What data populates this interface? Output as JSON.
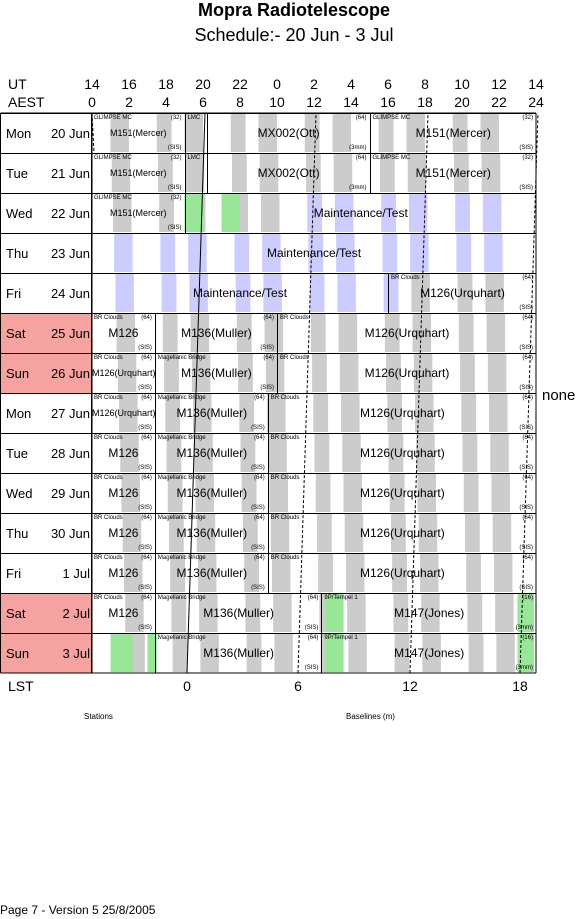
{
  "title": "Mopra Radiotelescope",
  "subtitle": "Schedule:- 20 Jun - 3  Jul",
  "ut_label": "UT",
  "aest_label": "AEST",
  "ut_ticks": [
    "14",
    "16",
    "18",
    "20",
    "22",
    "0",
    "2",
    "4",
    "6",
    "8",
    "10",
    "12",
    "14"
  ],
  "aest_ticks": [
    "0",
    "2",
    "4",
    "6",
    "8",
    "10",
    "12",
    "14",
    "16",
    "18",
    "20",
    "22",
    "24"
  ],
  "lst_label": "LST",
  "lst_ticks": [
    "0",
    "6",
    "12",
    "18"
  ],
  "none_label": "none",
  "stations_label": "Stations",
  "baselines_label": "Baselines (m)",
  "footer": "Page 7 - Version 5  25/8/2005",
  "colors": {
    "gray": "#cccccc",
    "blue": "#ccccff",
    "green": "#99e699",
    "weekend": "#f4a3a0"
  },
  "days": [
    {
      "name": "Mon",
      "date": "20 Jun",
      "weekend": false,
      "blocks": [
        {
          "src": "GLIMPSE MC",
          "cnt": "(32)",
          "main": "M151(Mercer)",
          "rx": "(SIS)",
          "small": true
        },
        {
          "src": "LMC",
          "cnt": "",
          "main": "",
          "rx": ""
        },
        {
          "src": "",
          "cnt": "(64)",
          "main": "MX002(Ott)",
          "rx": "(3mm)"
        },
        {
          "src": "GLIMPSE MC",
          "cnt": "(32)",
          "main": "M151(Mercer)",
          "rx": "(SIS)"
        }
      ]
    },
    {
      "name": "Tue",
      "date": "21 Jun",
      "weekend": false,
      "blocks": [
        {
          "src": "GLIMPSE MC",
          "cnt": "(32)",
          "main": "M151(Mercer)",
          "rx": "(SIS)",
          "small": true
        },
        {
          "src": "LMC",
          "cnt": "",
          "main": "",
          "rx": ""
        },
        {
          "src": "",
          "cnt": "(64)",
          "main": "MX002(Ott)",
          "rx": "(3mm)"
        },
        {
          "src": "GLIMPSE MC",
          "cnt": "(32)",
          "main": "M151(Mercer)",
          "rx": "(SIS)"
        }
      ]
    },
    {
      "name": "Wed",
      "date": "22 Jun",
      "weekend": false,
      "blocks": [
        {
          "src": "GLIMPSE MC",
          "cnt": "(32)",
          "main": "M151(Mercer)",
          "rx": "(SIS)",
          "small": true
        },
        {
          "src": "",
          "cnt": "",
          "main": "Maintenance/Test",
          "rx": ""
        }
      ]
    },
    {
      "name": "Thu",
      "date": "23 Jun",
      "weekend": false,
      "blocks": [
        {
          "src": "",
          "cnt": "",
          "main": "Maintenance/Test",
          "rx": ""
        }
      ]
    },
    {
      "name": "Fri",
      "date": "24 Jun",
      "weekend": false,
      "blocks": [
        {
          "src": "",
          "cnt": "",
          "main": "Maintenance/Test",
          "rx": ""
        },
        {
          "src": "BR Clouds",
          "cnt": "(64)",
          "main": "M126(Urquhart)",
          "rx": "(SIS)"
        }
      ]
    },
    {
      "name": "Sat",
      "date": "25 Jun",
      "weekend": true,
      "blocks": [
        {
          "src": "BR Clouds",
          "cnt": "(64)",
          "main": "M126",
          "rx": "(SIS)"
        },
        {
          "src": "",
          "cnt": "(64)",
          "main": "M136(Muller)",
          "rx": "(SIS)"
        },
        {
          "src": "BR Clouds",
          "cnt": "(64)",
          "main": "M126(Urquhart)",
          "rx": "(SIS)"
        }
      ]
    },
    {
      "name": "Sun",
      "date": "26 Jun",
      "weekend": true,
      "blocks": [
        {
          "src": "BR Clouds",
          "cnt": "(64)",
          "main": "M126(Urquhart)",
          "rx": "(SIS)",
          "small": true
        },
        {
          "src": "Magellanic Bridge",
          "cnt": "(64)",
          "main": "M136(Muller)",
          "rx": "(SIS)"
        },
        {
          "src": "BR Clouds",
          "cnt": "(64)",
          "main": "M126(Urquhart)",
          "rx": "(SIS)"
        }
      ]
    },
    {
      "name": "Mon",
      "date": "27 Jun",
      "weekend": false,
      "blocks": [
        {
          "src": "BR Clouds",
          "cnt": "(64)",
          "main": "M126(Urquhart)",
          "rx": "(SIS)",
          "small": true
        },
        {
          "src": "Magellanic Bridge",
          "cnt": "(64)",
          "main": "M136(Muller)",
          "rx": "(SIS)"
        },
        {
          "src": "BR Clouds",
          "cnt": "(64)",
          "main": "M126(Urquhart)",
          "rx": "(SIS)"
        }
      ]
    },
    {
      "name": "Tue",
      "date": "28 Jun",
      "weekend": false,
      "blocks": [
        {
          "src": "BR Clouds",
          "cnt": "(64)",
          "main": "M126",
          "rx": "(SIS)"
        },
        {
          "src": "Magellanic Bridge",
          "cnt": "(64)",
          "main": "M136(Muller)",
          "rx": "(SIS)"
        },
        {
          "src": "BR Clouds",
          "cnt": "(64)",
          "main": "M126(Urquhart)",
          "rx": "(SIS)"
        }
      ]
    },
    {
      "name": "Wed",
      "date": "29 Jun",
      "weekend": false,
      "blocks": [
        {
          "src": "BR Clouds",
          "cnt": "(64)",
          "main": "M126",
          "rx": "(SIS)"
        },
        {
          "src": "Magellanic Bridge",
          "cnt": "(64)",
          "main": "M136(Muller)",
          "rx": "(SIS)"
        },
        {
          "src": "BR Clouds",
          "cnt": "(64)",
          "main": "M126(Urquhart)",
          "rx": "(SIS)"
        }
      ]
    },
    {
      "name": "Thu",
      "date": "30 Jun",
      "weekend": false,
      "blocks": [
        {
          "src": "BR Clouds",
          "cnt": "(64)",
          "main": "M126",
          "rx": "(SIS)"
        },
        {
          "src": "Magellanic Bridge",
          "cnt": "(64)",
          "main": "M136(Muller)",
          "rx": "(SIS)"
        },
        {
          "src": "BR Clouds",
          "cnt": "(64)",
          "main": "M126(Urquhart)",
          "rx": "(SIS)"
        }
      ]
    },
    {
      "name": "Fri",
      "date": "1  Jul",
      "weekend": false,
      "blocks": [
        {
          "src": "BR Clouds",
          "cnt": "(64)",
          "main": "M126",
          "rx": "(SIS)"
        },
        {
          "src": "Magellanic Bridge",
          "cnt": "(64)",
          "main": "M136(Muller)",
          "rx": "(SIS)"
        },
        {
          "src": "BR Clouds",
          "cnt": "(64)",
          "main": "M126(Urquhart)",
          "rx": "(SIS)"
        }
      ]
    },
    {
      "name": "Sat",
      "date": "2  Jul",
      "weekend": true,
      "blocks": [
        {
          "src": "BR Clouds",
          "cnt": "(64)",
          "main": "M126",
          "rx": "(SIS)"
        },
        {
          "src": "Magellanic Bridge",
          "cnt": "(64)",
          "main": "M136(Muller)",
          "rx": "(SIS)"
        },
        {
          "src": "9P/Tempel 1",
          "cnt": "(16)",
          "main": "M147(Jones)",
          "rx": "(3mm)"
        }
      ]
    },
    {
      "name": "Sun",
      "date": "3  Jul",
      "weekend": true,
      "blocks": [
        {
          "src": "Magellanic Bridge",
          "cnt": "(64)",
          "main": "M136(Muller)",
          "rx": "(SIS)"
        },
        {
          "src": "9P/Tempel 1",
          "cnt": "(16)",
          "main": "M147(Jones)",
          "rx": "(3mm)"
        }
      ]
    }
  ]
}
